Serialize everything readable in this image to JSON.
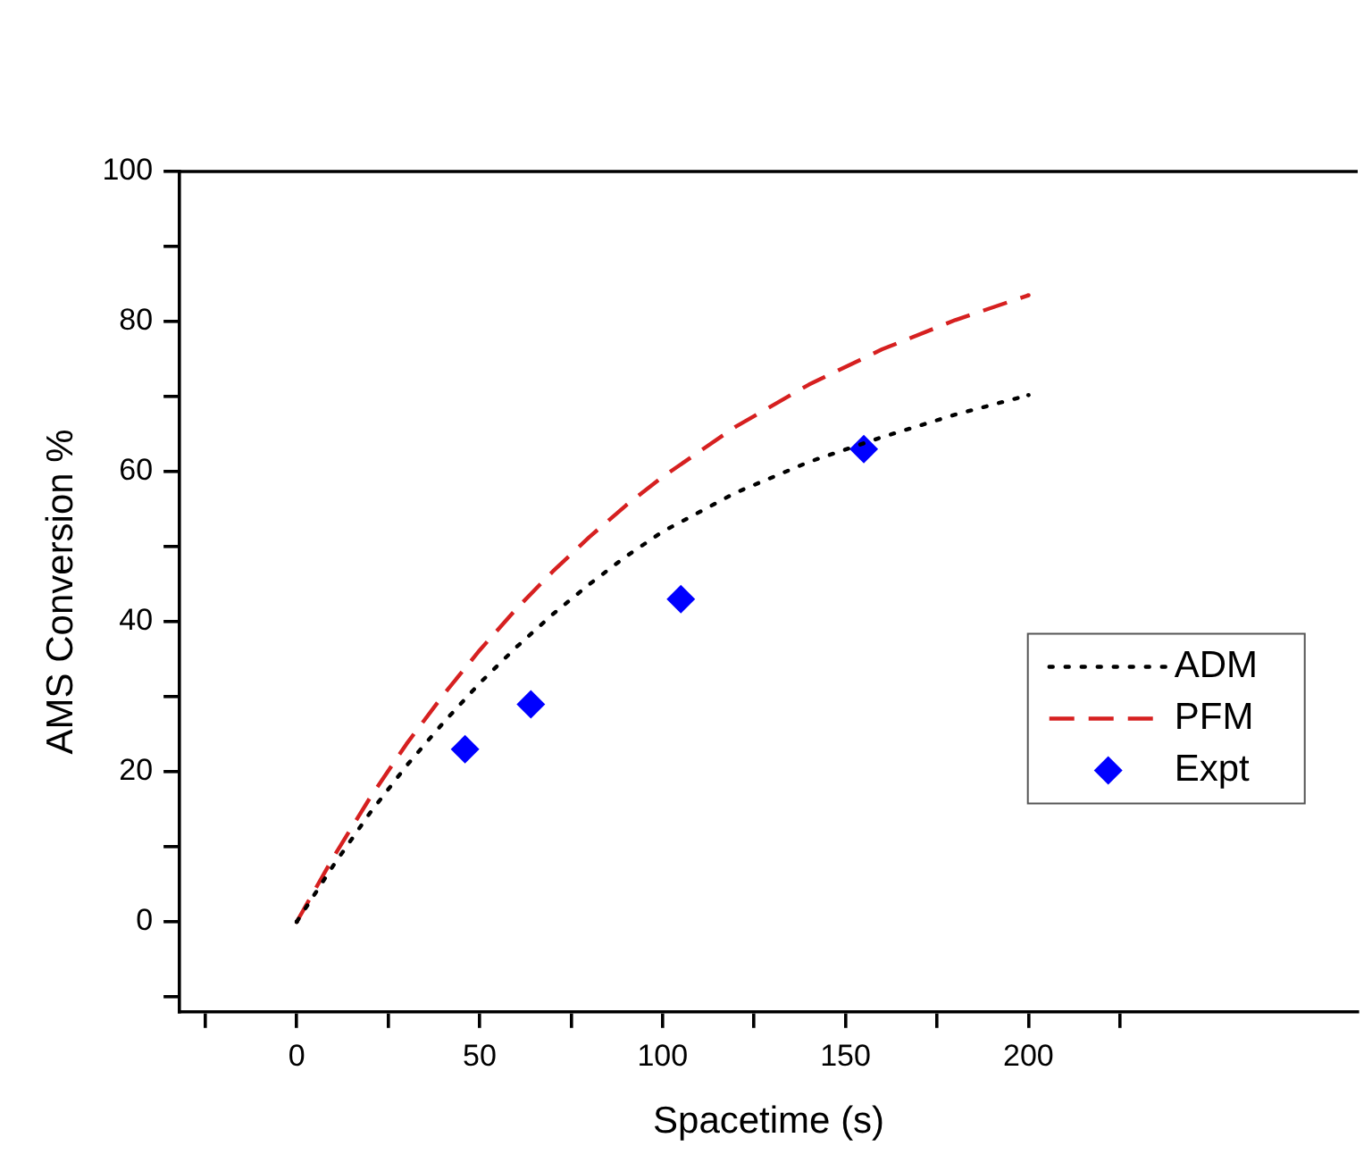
{
  "chart_data": {
    "type": "line",
    "xlabel": "Spacetime (s)",
    "ylabel": "AMS Conversion %",
    "xlim": [
      -32,
      290
    ],
    "ylim": [
      -12,
      100
    ],
    "xticks": [
      {
        "value": -25,
        "label": null
      },
      0,
      {
        "value": 25,
        "label": null
      },
      50,
      {
        "value": 75,
        "label": null
      },
      100,
      {
        "value": 125,
        "label": null
      },
      150,
      {
        "value": 175,
        "label": null
      },
      200,
      {
        "value": 225,
        "label": null
      }
    ],
    "yticks": [
      {
        "value": -10,
        "label": null
      },
      0,
      {
        "value": 10,
        "label": null
      },
      20,
      {
        "value": 30,
        "label": null
      },
      40,
      {
        "value": 50,
        "label": null
      },
      60,
      {
        "value": 70,
        "label": null
      },
      80,
      {
        "value": 90,
        "label": null
      },
      100
    ],
    "grid": false,
    "legend": "right",
    "series": [
      {
        "name": "ADM",
        "color": "#000000",
        "line_style": "dotted",
        "marker": "none",
        "x": [
          0,
          10,
          20,
          30,
          40,
          50,
          60,
          70,
          80,
          90,
          100,
          120,
          140,
          160,
          180,
          200
        ],
        "values": [
          0,
          7.5,
          14.5,
          20.8,
          26.5,
          31.8,
          36.6,
          41,
          45,
          48.7,
          52,
          57.2,
          61.3,
          64.6,
          67.6,
          70.2
        ]
      },
      {
        "name": "PFM",
        "color": "#d62020",
        "line_style": "dashed",
        "marker": "none",
        "x": [
          0,
          10,
          20,
          30,
          40,
          50,
          60,
          70,
          80,
          90,
          100,
          120,
          140,
          160,
          180,
          200
        ],
        "values": [
          0,
          8.6,
          16.5,
          23.7,
          30.2,
          36.2,
          41.7,
          46.7,
          51.3,
          55.5,
          59.3,
          66,
          71.6,
          76.3,
          80.2,
          83.5
        ]
      },
      {
        "name": "Expt",
        "type": "scatter",
        "color": "#0000ff",
        "marker": "diamond",
        "x": [
          46,
          64,
          105,
          155
        ],
        "values": [
          23,
          29,
          43,
          63
        ]
      }
    ]
  }
}
